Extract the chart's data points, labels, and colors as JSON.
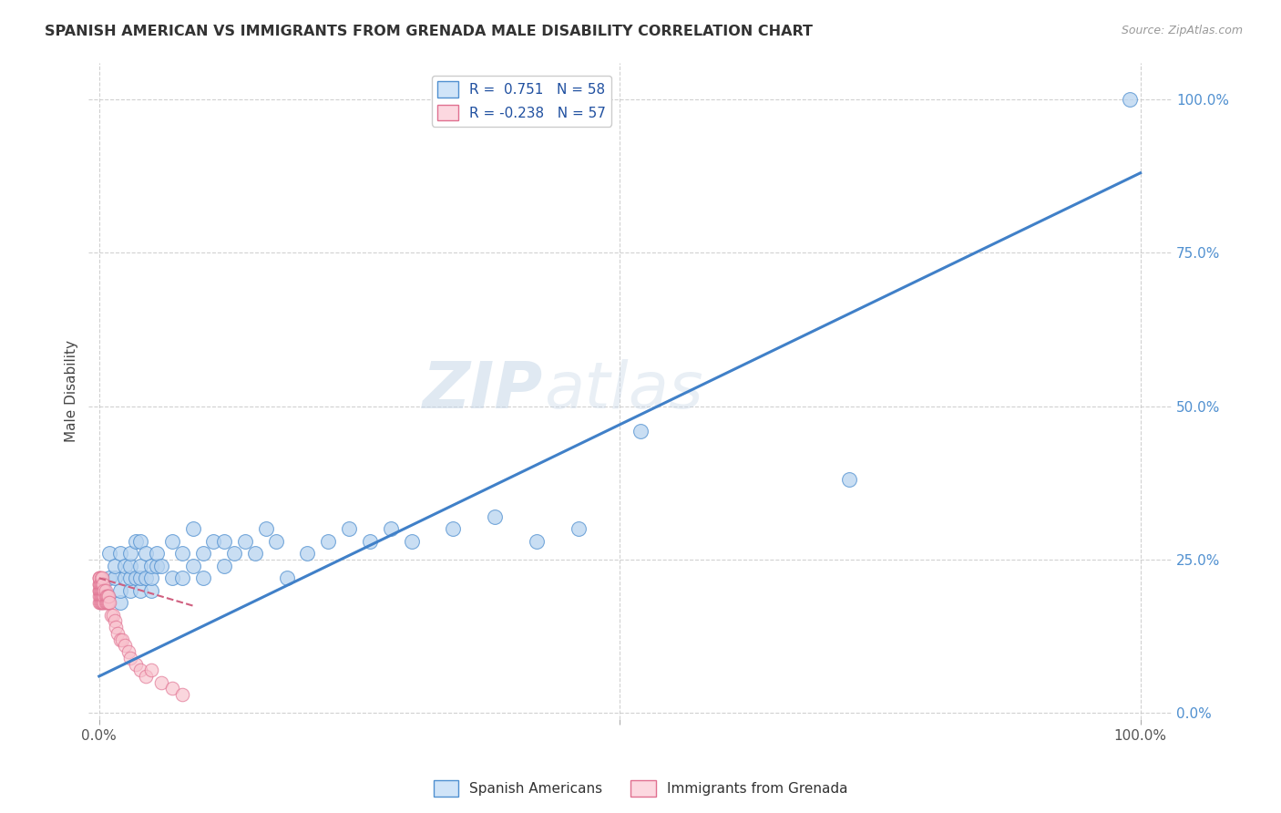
{
  "title": "SPANISH AMERICAN VS IMMIGRANTS FROM GRENADA MALE DISABILITY CORRELATION CHART",
  "source": "Source: ZipAtlas.com",
  "ylabel": "Male Disability",
  "r_blue": 0.751,
  "n_blue": 58,
  "r_pink": -0.238,
  "n_pink": 57,
  "watermark_zip": "ZIP",
  "watermark_atlas": "atlas",
  "blue_color": "#b8d4f0",
  "blue_edge_color": "#5090d0",
  "blue_line_color": "#4080c8",
  "pink_color": "#f8c0cc",
  "pink_edge_color": "#e07090",
  "pink_line_color": "#d06080",
  "legend_blue_face": "#d0e4f8",
  "legend_pink_face": "#fcd8e0",
  "ytick_color": "#5090d0",
  "xtick_color": "#666666",
  "blue_scatter_x": [
    0.005,
    0.01,
    0.01,
    0.015,
    0.015,
    0.02,
    0.02,
    0.02,
    0.025,
    0.025,
    0.03,
    0.03,
    0.03,
    0.03,
    0.035,
    0.035,
    0.04,
    0.04,
    0.04,
    0.04,
    0.045,
    0.045,
    0.05,
    0.05,
    0.05,
    0.055,
    0.055,
    0.06,
    0.07,
    0.07,
    0.08,
    0.08,
    0.09,
    0.09,
    0.1,
    0.1,
    0.11,
    0.12,
    0.12,
    0.13,
    0.14,
    0.15,
    0.16,
    0.17,
    0.18,
    0.2,
    0.22,
    0.24,
    0.26,
    0.28,
    0.3,
    0.34,
    0.38,
    0.42,
    0.46,
    0.52,
    0.72,
    0.99
  ],
  "blue_scatter_y": [
    0.2,
    0.22,
    0.26,
    0.22,
    0.24,
    0.18,
    0.2,
    0.26,
    0.22,
    0.24,
    0.2,
    0.22,
    0.24,
    0.26,
    0.22,
    0.28,
    0.2,
    0.22,
    0.24,
    0.28,
    0.22,
    0.26,
    0.2,
    0.22,
    0.24,
    0.24,
    0.26,
    0.24,
    0.22,
    0.28,
    0.22,
    0.26,
    0.24,
    0.3,
    0.22,
    0.26,
    0.28,
    0.24,
    0.28,
    0.26,
    0.28,
    0.26,
    0.3,
    0.28,
    0.22,
    0.26,
    0.28,
    0.3,
    0.28,
    0.3,
    0.28,
    0.3,
    0.32,
    0.28,
    0.3,
    0.46,
    0.38,
    1.0
  ],
  "pink_scatter_x": [
    0.0,
    0.0,
    0.0,
    0.0,
    0.0,
    0.0,
    0.0,
    0.0,
    0.0,
    0.001,
    0.001,
    0.001,
    0.001,
    0.002,
    0.002,
    0.002,
    0.002,
    0.002,
    0.003,
    0.003,
    0.003,
    0.003,
    0.003,
    0.004,
    0.004,
    0.004,
    0.004,
    0.005,
    0.005,
    0.005,
    0.006,
    0.006,
    0.006,
    0.007,
    0.007,
    0.008,
    0.008,
    0.009,
    0.009,
    0.01,
    0.012,
    0.013,
    0.015,
    0.016,
    0.018,
    0.02,
    0.022,
    0.025,
    0.028,
    0.03,
    0.035,
    0.04,
    0.045,
    0.05,
    0.06,
    0.07,
    0.08
  ],
  "pink_scatter_y": [
    0.18,
    0.19,
    0.2,
    0.2,
    0.21,
    0.21,
    0.22,
    0.22,
    0.22,
    0.18,
    0.19,
    0.2,
    0.21,
    0.18,
    0.19,
    0.2,
    0.21,
    0.22,
    0.18,
    0.19,
    0.2,
    0.21,
    0.22,
    0.18,
    0.19,
    0.2,
    0.21,
    0.18,
    0.19,
    0.2,
    0.18,
    0.19,
    0.2,
    0.18,
    0.19,
    0.18,
    0.19,
    0.18,
    0.19,
    0.18,
    0.16,
    0.16,
    0.15,
    0.14,
    0.13,
    0.12,
    0.12,
    0.11,
    0.1,
    0.09,
    0.08,
    0.07,
    0.06,
    0.07,
    0.05,
    0.04,
    0.03
  ]
}
